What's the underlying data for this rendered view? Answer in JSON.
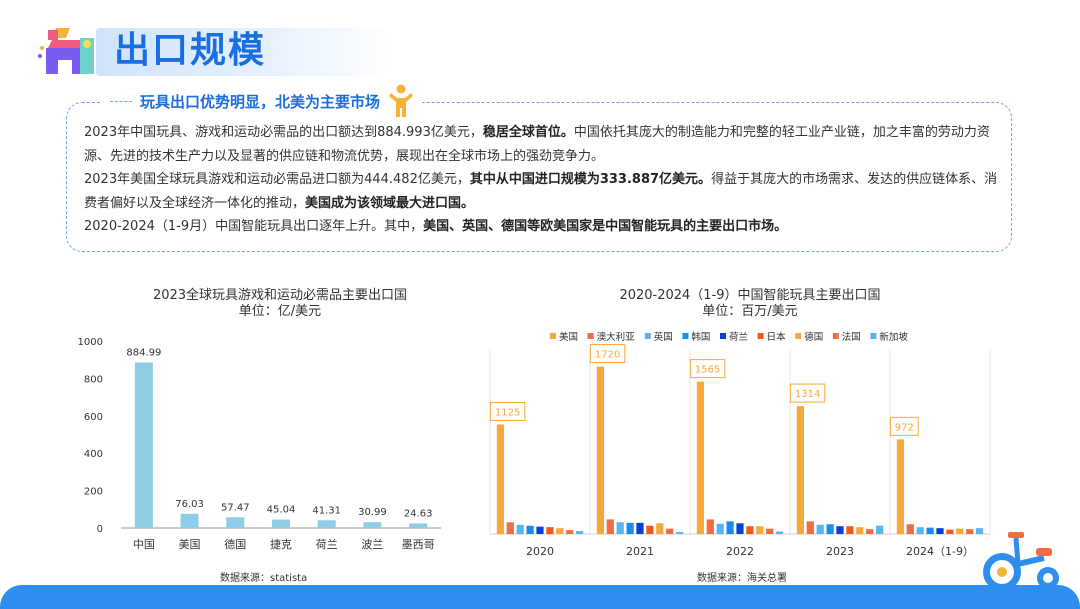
{
  "header": {
    "title": "出口规模"
  },
  "note": {
    "heading": "玩具出口优势明显，北美为主要市场",
    "lines": [
      [
        {
          "t": "2023年中国玩具、游戏和运动必需品的出口额达到884.993亿美元，"
        },
        {
          "t": "稳居全球首位。",
          "b": true
        },
        {
          "t": "中国依托其庞大的制造能力和完整的轻工业产业链，加之丰富的劳动力资源、先进的技术生产力以及显著的供应链和物流优势，展现出在全球市场上的强劲竞争力。"
        }
      ],
      [
        {
          "t": "2023年美国全球玩具游戏和运动必需品进口额为444.482亿美元，"
        },
        {
          "t": "其中从中国进口规模为333.887亿美元。",
          "b": true
        },
        {
          "t": "得益于其庞大的市场需求、发达的供应链体系、消费者偏好以及全球经济一体化的推动，"
        },
        {
          "t": "美国成为该领域最大进口国。",
          "b": true
        }
      ],
      [
        {
          "t": "2020-2024（1-9月）中国智能玩具出口逐年上升。其中，"
        },
        {
          "t": "美国、英国、德国等欧美国家是中国智能玩具的主要出口市场。",
          "b": true
        }
      ]
    ]
  },
  "chart_left": {
    "title": "2023全球玩具游戏和运动必需品主要出口国",
    "unit": "单位：亿/美元",
    "source": "数据来源：statista"
  },
  "chart_right": {
    "title": "2020-2024（1-9）中国智能玩具主要出口国",
    "unit": "单位：百万/美元",
    "source": "数据来源：海关总署"
  },
  "chart_data": [
    {
      "type": "bar",
      "title": "2023全球玩具游戏和运动必需品主要出口国",
      "subtitle": "单位：亿/美元",
      "categories": [
        "中国",
        "美国",
        "德国",
        "捷克",
        "荷兰",
        "波兰",
        "墨西哥"
      ],
      "values": [
        884.99,
        76.03,
        57.47,
        45.04,
        41.31,
        30.99,
        24.63
      ],
      "value_labels": [
        "884.99",
        "76.03",
        "57.47",
        "45.04",
        "41.31",
        "30.99",
        "24.63"
      ],
      "ylim": [
        0,
        1000
      ],
      "yticks": [
        0,
        200,
        400,
        600,
        800,
        1000
      ],
      "grid": false,
      "color": "#8fcde6"
    },
    {
      "type": "bar",
      "title": "2020-2024（1-9）中国智能玩具主要出口国",
      "subtitle": "单位：百万/美元",
      "categories": [
        "2020",
        "2021",
        "2022",
        "2023",
        "2024（1-9）"
      ],
      "legend_position": "top",
      "grid": true,
      "ylim": [
        0,
        1900
      ],
      "series": [
        {
          "name": "美国",
          "color": "#f7a83c",
          "values": [
            1125,
            1720,
            1565,
            1314,
            972
          ]
        },
        {
          "name": "澳大利亚",
          "color": "#f26b43",
          "values": [
            120,
            150,
            150,
            130,
            100
          ]
        },
        {
          "name": "英国",
          "color": "#5ab4ee",
          "values": [
            95,
            120,
            105,
            95,
            70
          ]
        },
        {
          "name": "韩国",
          "color": "#1a8cf0",
          "values": [
            85,
            115,
            130,
            100,
            65
          ]
        },
        {
          "name": "荷兰",
          "color": "#0a3fd6",
          "values": [
            75,
            115,
            110,
            80,
            60
          ]
        },
        {
          "name": "日本",
          "color": "#f15a1e",
          "values": [
            70,
            85,
            80,
            80,
            45
          ]
        },
        {
          "name": "德国",
          "color": "#f7a83c",
          "values": [
            60,
            110,
            80,
            70,
            55
          ]
        },
        {
          "name": "法国",
          "color": "#f26b43",
          "values": [
            40,
            55,
            55,
            50,
            50
          ]
        },
        {
          "name": "新加坡",
          "color": "#5ab4ee",
          "values": [
            30,
            20,
            25,
            85,
            60
          ]
        }
      ],
      "first_series_value_labels": [
        "1125",
        "1720",
        "1565",
        "1314",
        "972"
      ]
    }
  ]
}
